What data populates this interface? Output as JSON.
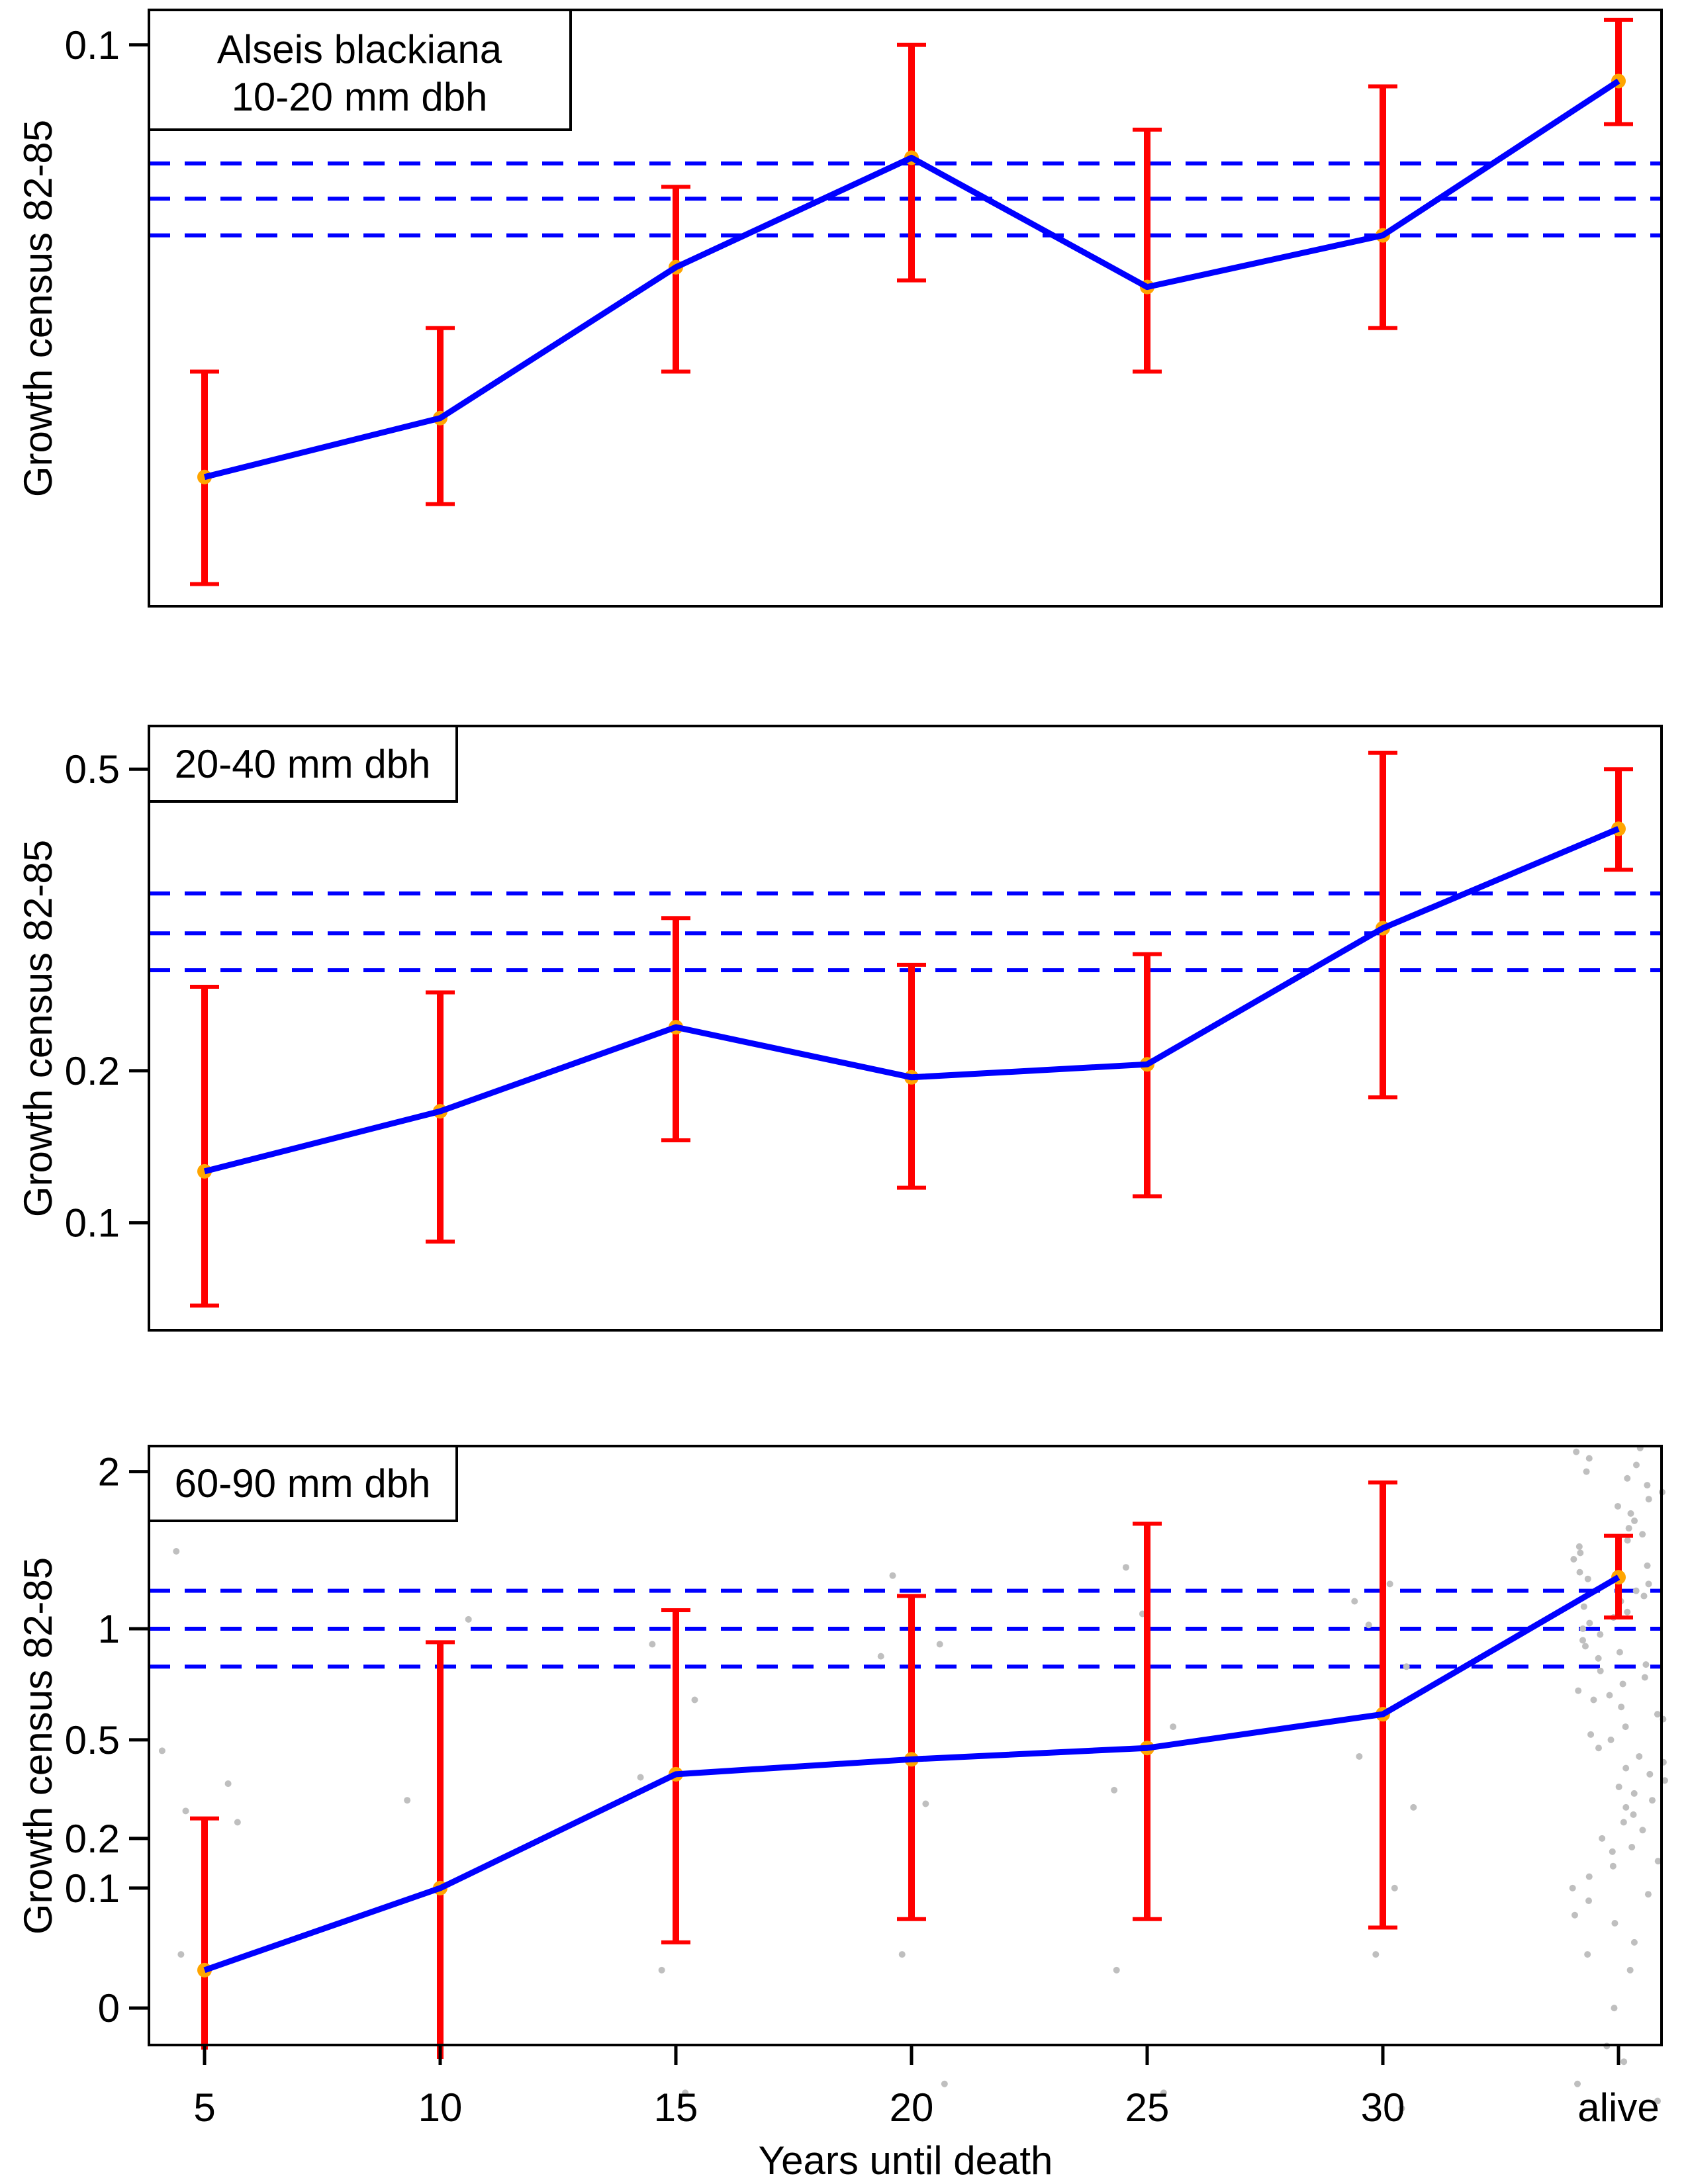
{
  "figure": {
    "species": "Alseis blackiana",
    "xlabel": "Years until death",
    "ylabel": "Growth census 82-85",
    "categories": [
      "5",
      "10",
      "15",
      "20",
      "25",
      "30",
      "alive"
    ]
  },
  "style": {
    "line_color": "#0000FF",
    "error_color": "#FF0000",
    "marker_color": "#FFA500",
    "dashed_color": "#0000FF",
    "scatter_color": "#BFBFBF",
    "axis_color": "#000000",
    "background": "#FFFFFF"
  },
  "chart_data": [
    {
      "type": "line",
      "title": "Alseis blackiana 10-20 mm dbh",
      "label_lines": [
        "Alseis blackiana",
        "10-20 mm dbh"
      ],
      "ylabel": "Growth census 82-85",
      "xlabel": "",
      "yscale": "sqrt",
      "ylim": [
        0.02,
        0.107
      ],
      "grid": false,
      "legend_position": "top-left-box",
      "categories": [
        "5",
        "10",
        "15",
        "20",
        "25",
        "30",
        "alive"
      ],
      "yticks": [
        {
          "v": 0.1,
          "label": "0.1"
        }
      ],
      "dashed_guides": [
        0.078,
        0.072,
        0.066
      ],
      "points": [
        {
          "x": "5",
          "y": 0.033,
          "lo": 0.022,
          "hi": 0.046,
          "cap_lo": true
        },
        {
          "x": "10",
          "y": 0.04,
          "lo": 0.03,
          "hi": 0.052,
          "cap_lo": true
        },
        {
          "x": "15",
          "y": 0.061,
          "lo": 0.046,
          "hi": 0.074,
          "cap_lo": true
        },
        {
          "x": "20",
          "y": 0.079,
          "lo": 0.059,
          "hi": 0.1,
          "cap_lo": true
        },
        {
          "x": "25",
          "y": 0.058,
          "lo": 0.046,
          "hi": 0.084,
          "cap_lo": true
        },
        {
          "x": "30",
          "y": 0.066,
          "lo": 0.052,
          "hi": 0.092,
          "cap_lo": true
        },
        {
          "x": "alive",
          "y": 0.093,
          "lo": 0.085,
          "hi": 0.105,
          "cap_lo": true
        }
      ],
      "scatter": []
    },
    {
      "type": "line",
      "title": "Alseis blackiana 20-40 mm dbh",
      "label_lines": [
        "20-40 mm dbh"
      ],
      "ylabel": "Growth census 82-85",
      "xlabel": "",
      "yscale": "sqrt",
      "ylim": [
        0.05,
        0.554
      ],
      "grid": false,
      "legend_position": "top-left-box",
      "categories": [
        "5",
        "10",
        "15",
        "20",
        "25",
        "30",
        "alive"
      ],
      "yticks": [
        {
          "v": 0.5,
          "label": "0.5"
        },
        {
          "v": 0.2,
          "label": "0.2"
        },
        {
          "v": 0.1,
          "label": "0.1"
        }
      ],
      "dashed_guides": [
        0.36,
        0.32,
        0.285
      ],
      "points": [
        {
          "x": "5",
          "y": 0.13,
          "lo": 0.06,
          "hi": 0.27,
          "cap_lo": true
        },
        {
          "x": "10",
          "y": 0.17,
          "lo": 0.09,
          "hi": 0.265,
          "cap_lo": true
        },
        {
          "x": "15",
          "y": 0.235,
          "lo": 0.15,
          "hi": 0.335,
          "cap_lo": true
        },
        {
          "x": "20",
          "y": 0.195,
          "lo": 0.12,
          "hi": 0.29,
          "cap_lo": true
        },
        {
          "x": "25",
          "y": 0.205,
          "lo": 0.115,
          "hi": 0.3,
          "cap_lo": true
        },
        {
          "x": "30",
          "y": 0.325,
          "lo": 0.18,
          "hi": 0.52,
          "cap_lo": true
        },
        {
          "x": "alive",
          "y": 0.43,
          "lo": 0.385,
          "hi": 0.5,
          "cap_lo": true
        }
      ],
      "scatter": []
    },
    {
      "type": "line",
      "title": "Alseis blackiana 60-90 mm dbh",
      "label_lines": [
        "60-90 mm dbh"
      ],
      "ylabel": "Growth census 82-85",
      "xlabel": "Years until death",
      "yscale": "sqrt",
      "ylim": [
        -0.0095,
        2.195
      ],
      "grid": false,
      "legend_position": "top-left-box",
      "categories": [
        "5",
        "10",
        "15",
        "20",
        "25",
        "30",
        "alive"
      ],
      "yticks": [
        {
          "v": 2,
          "label": "2"
        },
        {
          "v": 1,
          "label": "1"
        },
        {
          "v": 0.5,
          "label": "0.5"
        },
        {
          "v": 0.2,
          "label": "0.2"
        },
        {
          "v": 0.1,
          "label": "0.1"
        },
        {
          "v": 0,
          "label": "0"
        }
      ],
      "dashed_guides": [
        1.21,
        1.0,
        0.81
      ],
      "points": [
        {
          "x": "5",
          "y": 0.01,
          "lo": -0.012,
          "hi": 0.25,
          "cap_lo": false
        },
        {
          "x": "10",
          "y": 0.1,
          "lo": -0.018,
          "hi": 0.93,
          "cap_lo": false
        },
        {
          "x": "15",
          "y": 0.38,
          "lo": 0.03,
          "hi": 1.1,
          "cap_lo": true
        },
        {
          "x": "20",
          "y": 0.43,
          "lo": 0.055,
          "hi": 1.18,
          "cap_lo": true
        },
        {
          "x": "25",
          "y": 0.47,
          "lo": 0.055,
          "hi": 1.63,
          "cap_lo": true
        },
        {
          "x": "30",
          "y": 0.6,
          "lo": 0.045,
          "hi": 1.92,
          "cap_lo": true
        },
        {
          "x": "alive",
          "y": 1.29,
          "lo": 1.06,
          "hi": 1.55,
          "cap_lo": true
        }
      ],
      "scatter": [
        [
          0,
          -0.12,
          1.45
        ],
        [
          0,
          -0.18,
          0.46
        ],
        [
          0,
          0.1,
          0.35
        ],
        [
          0,
          -0.08,
          0.27
        ],
        [
          0,
          0.14,
          0.24
        ],
        [
          0,
          -0.1,
          0.02
        ],
        [
          1,
          0.12,
          1.05
        ],
        [
          1,
          -0.14,
          0.3
        ],
        [
          2,
          -0.1,
          0.92
        ],
        [
          2,
          0.08,
          0.66
        ],
        [
          2,
          -0.15,
          0.37
        ],
        [
          2,
          -0.06,
          0.01
        ],
        [
          2,
          0.04,
          -0.05
        ],
        [
          3,
          -0.08,
          1.3
        ],
        [
          3,
          0.12,
          0.92
        ],
        [
          3,
          -0.13,
          0.86
        ],
        [
          3,
          0.06,
          0.29
        ],
        [
          3,
          -0.04,
          0.02
        ],
        [
          3,
          0.14,
          -0.04
        ],
        [
          4,
          -0.09,
          1.35
        ],
        [
          4,
          -0.02,
          1.08
        ],
        [
          4,
          0.11,
          0.55
        ],
        [
          4,
          -0.14,
          0.33
        ],
        [
          4,
          -0.13,
          0.01
        ],
        [
          4,
          0.07,
          -0.05
        ],
        [
          5,
          0.03,
          1.25
        ],
        [
          5,
          -0.12,
          1.15
        ],
        [
          5,
          -0.06,
          1.02
        ],
        [
          5,
          0.1,
          0.81
        ],
        [
          5,
          -0.1,
          0.44
        ],
        [
          5,
          0.13,
          0.28
        ],
        [
          5,
          0.05,
          0.1
        ],
        [
          5,
          -0.03,
          0.02
        ],
        [
          5,
          0.08,
          -0.07
        ]
      ],
      "alive_scatter": [
        -0.06,
        -0.04,
        -0.02,
        -0.01,
        0.0,
        0.01,
        0.02,
        0.03,
        0.05,
        0.06,
        0.08,
        0.09,
        0.1,
        0.12,
        0.14,
        0.15,
        0.17,
        0.18,
        0.2,
        0.22,
        0.24,
        0.26,
        0.28,
        0.3,
        0.32,
        0.34,
        0.36,
        0.38,
        0.4,
        0.42,
        0.44,
        0.47,
        0.5,
        0.52,
        0.55,
        0.58,
        0.6,
        0.63,
        0.66,
        0.68,
        0.7,
        0.73,
        0.76,
        0.79,
        0.82,
        0.85,
        0.88,
        0.91,
        0.94,
        0.97,
        1.0,
        1.03,
        1.06,
        1.09,
        1.12,
        1.15,
        1.18,
        1.21,
        1.25,
        1.28,
        1.32,
        1.36,
        1.4,
        1.44,
        1.48,
        1.52,
        1.56,
        1.6,
        1.65,
        1.7,
        1.75,
        1.8,
        1.85,
        1.9,
        1.95,
        2.0,
        2.05,
        2.1,
        2.15,
        2.18
      ]
    }
  ]
}
